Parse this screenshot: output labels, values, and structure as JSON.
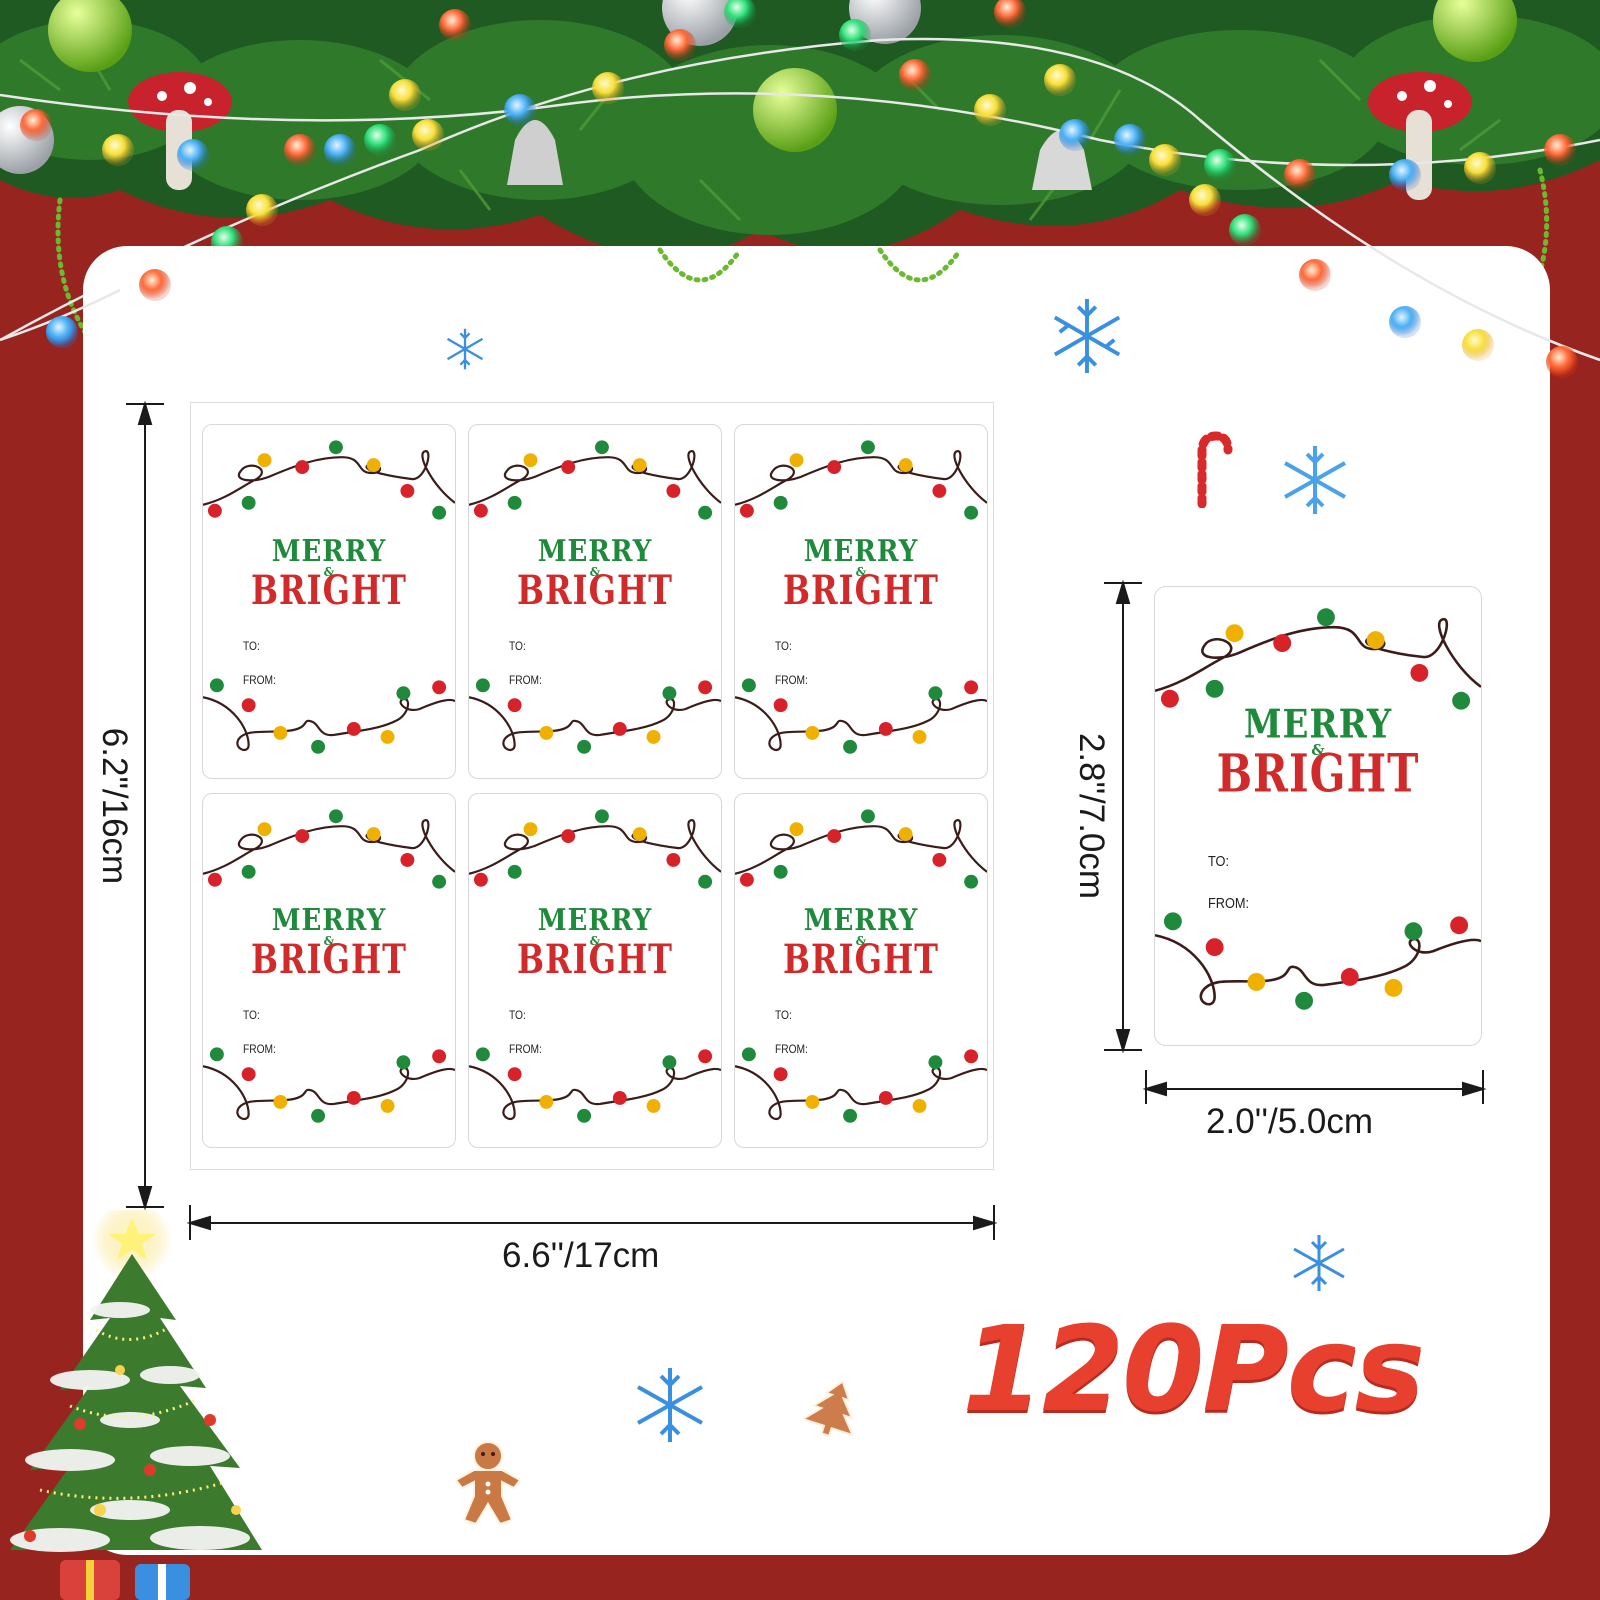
{
  "dimensions": {
    "sheet_height": "6.2\"/16cm",
    "sheet_width": "6.6''/17cm",
    "label_height": "2.8\"/7.0cm",
    "label_width": "2.0''/5.0cm"
  },
  "label": {
    "line1": "MERRY",
    "ampersand": "&",
    "line2": "BRIGHT",
    "to": "TO:",
    "from": "FROM:"
  },
  "sheet": {
    "rows": 2,
    "columns": 3
  },
  "quantity": "120Pcs",
  "colors": {
    "background": "#97241f",
    "panel": "#ffffff",
    "green": "#1f8a3b",
    "red": "#d12a2a",
    "quantity": "#e7402f",
    "snowflake": "#3a8fe0"
  },
  "icons": [
    "garland-icon",
    "snowflake-icon",
    "candy-cane-icon",
    "christmas-tree-icon",
    "gingerbread-man-icon",
    "tree-cookie-icon",
    "light-string-icon"
  ]
}
